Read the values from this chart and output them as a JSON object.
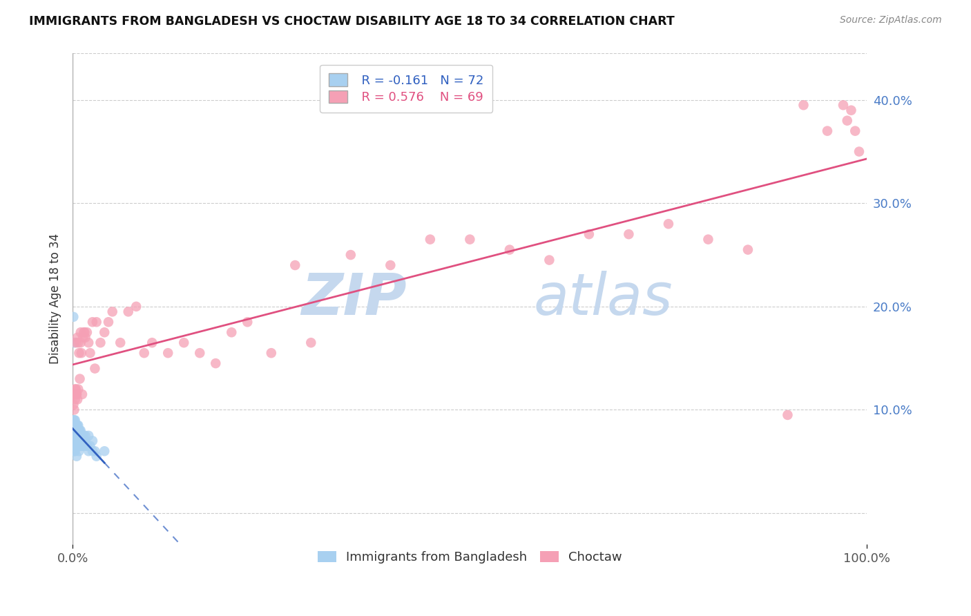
{
  "title": "IMMIGRANTS FROM BANGLADESH VS CHOCTAW DISABILITY AGE 18 TO 34 CORRELATION CHART",
  "source": "Source: ZipAtlas.com",
  "ylabel_left": "Disability Age 18 to 34",
  "legend_label1": "Immigrants from Bangladesh",
  "legend_label2": "Choctaw",
  "r1": -0.161,
  "n1": 72,
  "r2": 0.576,
  "n2": 69,
  "color1": "#a8d0f0",
  "color2": "#f5a0b5",
  "line_color1": "#3060c0",
  "line_color2": "#e05080",
  "xmin": 0.0,
  "xmax": 1.0,
  "ymin": -0.03,
  "ymax": 0.445,
  "yticks": [
    0.0,
    0.1,
    0.2,
    0.3,
    0.4
  ],
  "xticks": [
    0.0,
    1.0
  ],
  "xtick_labels": [
    "0.0%",
    "100.0%"
  ],
  "ytick_labels": [
    "",
    "10.0%",
    "20.0%",
    "30.0%",
    "40.0%"
  ],
  "watermark_top": "ZIP",
  "watermark_bot": "atlas",
  "watermark_color": "#c5d8ee",
  "bg_color": "#ffffff",
  "blue_x": [
    0.001,
    0.001,
    0.001,
    0.001,
    0.001,
    0.002,
    0.002,
    0.002,
    0.002,
    0.002,
    0.002,
    0.003,
    0.003,
    0.003,
    0.003,
    0.003,
    0.003,
    0.004,
    0.004,
    0.004,
    0.004,
    0.005,
    0.005,
    0.005,
    0.005,
    0.005,
    0.006,
    0.006,
    0.006,
    0.007,
    0.007,
    0.007,
    0.008,
    0.008,
    0.008,
    0.009,
    0.009,
    0.01,
    0.01,
    0.011,
    0.012,
    0.013,
    0.014,
    0.015,
    0.016,
    0.018,
    0.02,
    0.022,
    0.025,
    0.028,
    0.001,
    0.001,
    0.002,
    0.002,
    0.003,
    0.003,
    0.004,
    0.004,
    0.005,
    0.006,
    0.007,
    0.008,
    0.009,
    0.01,
    0.012,
    0.014,
    0.016,
    0.018,
    0.02,
    0.025,
    0.03,
    0.04
  ],
  "blue_y": [
    0.085,
    0.075,
    0.075,
    0.07,
    0.065,
    0.085,
    0.08,
    0.075,
    0.07,
    0.065,
    0.06,
    0.085,
    0.08,
    0.075,
    0.07,
    0.065,
    0.06,
    0.08,
    0.075,
    0.07,
    0.065,
    0.08,
    0.075,
    0.07,
    0.065,
    0.055,
    0.075,
    0.07,
    0.065,
    0.075,
    0.07,
    0.065,
    0.07,
    0.065,
    0.06,
    0.07,
    0.065,
    0.07,
    0.065,
    0.07,
    0.065,
    0.065,
    0.065,
    0.07,
    0.07,
    0.065,
    0.075,
    0.065,
    0.07,
    0.06,
    0.19,
    0.09,
    0.165,
    0.09,
    0.085,
    0.09,
    0.085,
    0.07,
    0.085,
    0.085,
    0.085,
    0.08,
    0.08,
    0.08,
    0.075,
    0.075,
    0.075,
    0.065,
    0.06,
    0.06,
    0.055,
    0.06
  ],
  "pink_x": [
    0.001,
    0.001,
    0.002,
    0.002,
    0.002,
    0.003,
    0.003,
    0.003,
    0.004,
    0.004,
    0.005,
    0.005,
    0.006,
    0.006,
    0.007,
    0.007,
    0.008,
    0.009,
    0.01,
    0.01,
    0.011,
    0.012,
    0.013,
    0.014,
    0.015,
    0.016,
    0.018,
    0.02,
    0.022,
    0.025,
    0.028,
    0.03,
    0.035,
    0.04,
    0.045,
    0.05,
    0.06,
    0.07,
    0.08,
    0.09,
    0.1,
    0.12,
    0.14,
    0.16,
    0.18,
    0.2,
    0.22,
    0.25,
    0.28,
    0.3,
    0.35,
    0.4,
    0.45,
    0.5,
    0.55,
    0.6,
    0.65,
    0.7,
    0.75,
    0.8,
    0.85,
    0.9,
    0.92,
    0.95,
    0.97,
    0.975,
    0.98,
    0.985,
    0.99
  ],
  "pink_y": [
    0.105,
    0.115,
    0.115,
    0.1,
    0.115,
    0.115,
    0.11,
    0.12,
    0.12,
    0.165,
    0.115,
    0.115,
    0.11,
    0.17,
    0.12,
    0.165,
    0.155,
    0.13,
    0.165,
    0.175,
    0.155,
    0.115,
    0.17,
    0.175,
    0.175,
    0.17,
    0.175,
    0.165,
    0.155,
    0.185,
    0.14,
    0.185,
    0.165,
    0.175,
    0.185,
    0.195,
    0.165,
    0.195,
    0.2,
    0.155,
    0.165,
    0.155,
    0.165,
    0.155,
    0.145,
    0.175,
    0.185,
    0.155,
    0.24,
    0.165,
    0.25,
    0.24,
    0.265,
    0.265,
    0.255,
    0.245,
    0.27,
    0.27,
    0.28,
    0.265,
    0.255,
    0.095,
    0.395,
    0.37,
    0.395,
    0.38,
    0.39,
    0.37,
    0.35
  ]
}
